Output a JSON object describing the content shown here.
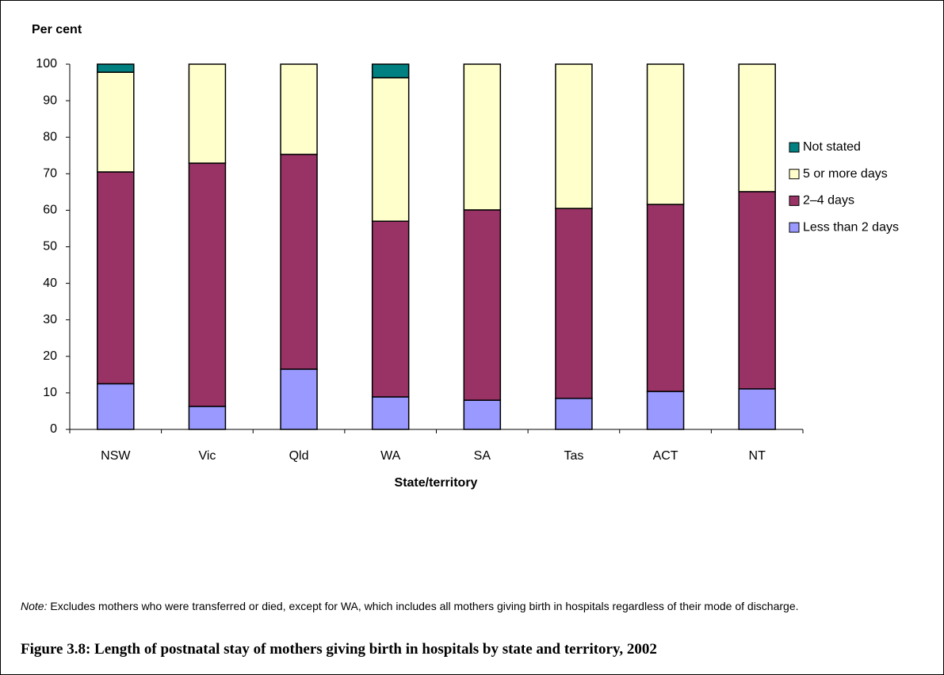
{
  "chart_data": {
    "type": "stacked_bar",
    "title": "Figure 3.8: Length of postnatal stay of mothers giving birth in hospitals by state and territory, 2002",
    "y_label": "Per cent",
    "x_label": "State/territory",
    "note_label": "Note:",
    "note": "Excludes mothers who were transferred or died, except for WA, which includes all mothers giving birth in hospitals regardless of their mode of discharge.",
    "categories": [
      "NSW",
      "Vic",
      "Qld",
      "WA",
      "SA",
      "Tas",
      "ACT",
      "NT"
    ],
    "series": [
      {
        "name": "Less than 2 days",
        "color": "#9999ff",
        "values": [
          12.5,
          6.3,
          16.5,
          8.9,
          8.0,
          8.5,
          10.4,
          11.1
        ]
      },
      {
        "name": "2–4 days",
        "color": "#993366",
        "values": [
          58.0,
          66.6,
          58.8,
          48.1,
          52.1,
          52.0,
          51.2,
          54.0
        ]
      },
      {
        "name": "5 or more days",
        "color": "#ffffcc",
        "values": [
          27.3,
          27.1,
          24.7,
          39.3,
          39.9,
          39.5,
          38.4,
          34.9
        ]
      },
      {
        "name": "Not stated",
        "color": "#008080",
        "values": [
          2.2,
          0,
          0,
          3.7,
          0,
          0,
          0,
          0
        ]
      }
    ],
    "ylim": [
      0,
      100
    ],
    "yticks": [
      0,
      10,
      20,
      30,
      40,
      50,
      60,
      70,
      80,
      90,
      100
    ],
    "grid": false,
    "legend": "right"
  }
}
